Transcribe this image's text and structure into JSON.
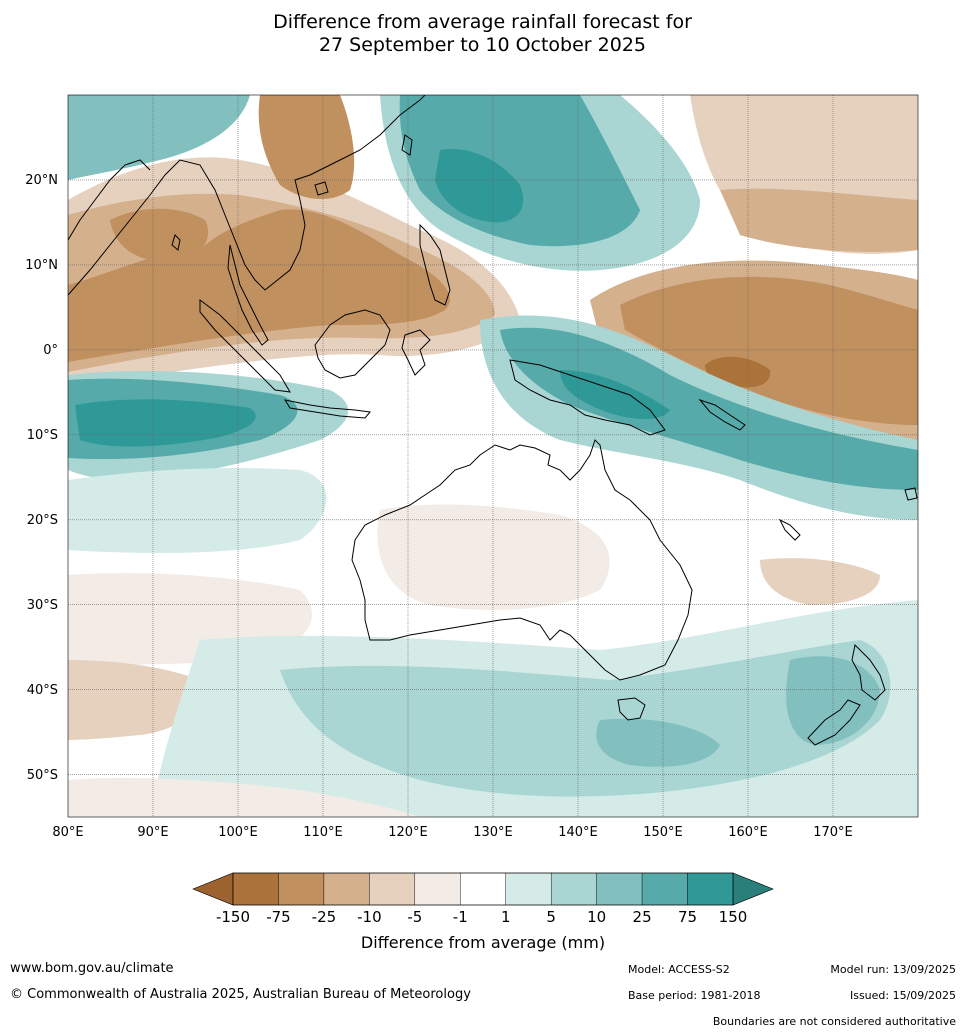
{
  "title": {
    "line1": "Difference from average rainfall forecast for",
    "line2": "27 September to 10 October 2025"
  },
  "map": {
    "lon_range": [
      80,
      180
    ],
    "lat_range": [
      -55,
      30
    ],
    "lat_ticks": [
      {
        "value": 20,
        "label": "20°N"
      },
      {
        "value": 10,
        "label": "10°N"
      },
      {
        "value": 0,
        "label": "0°"
      },
      {
        "value": -10,
        "label": "10°S"
      },
      {
        "value": -20,
        "label": "20°S"
      },
      {
        "value": -30,
        "label": "30°S"
      },
      {
        "value": -40,
        "label": "40°S"
      },
      {
        "value": -50,
        "label": "50°S"
      }
    ],
    "lon_ticks": [
      {
        "value": 80,
        "label": "80°E"
      },
      {
        "value": 90,
        "label": "90°E"
      },
      {
        "value": 100,
        "label": "100°E"
      },
      {
        "value": 110,
        "label": "110°E"
      },
      {
        "value": 120,
        "label": "120°E"
      },
      {
        "value": 130,
        "label": "130°E"
      },
      {
        "value": 140,
        "label": "140°E"
      },
      {
        "value": 150,
        "label": "150°E"
      },
      {
        "value": 160,
        "label": "160°E"
      },
      {
        "value": 170,
        "label": "170°E"
      }
    ]
  },
  "colorbar": {
    "levels": [
      "-150",
      "-75",
      "-25",
      "-10",
      "-5",
      "-1",
      "1",
      "5",
      "10",
      "25",
      "75",
      "150"
    ],
    "colors": [
      "#ab733a",
      "#c0905f",
      "#d4b08c",
      "#e6d1bf",
      "#f3ebe5",
      "#ffffff",
      "#d5ebe8",
      "#a9d6d3",
      "#81c0bf",
      "#56aaa9",
      "#2e9996"
    ],
    "extend_low_color": "#9c6230",
    "extend_high_color": "#2a7f7b",
    "label": "Difference from average (mm)"
  },
  "footer": {
    "website": "www.bom.gov.au/climate",
    "copyright": "© Commonwealth of Australia 2025, Australian Bureau of Meteorology",
    "model": "Model: ACCESS-S2",
    "base_period": "Base period: 1981-2018",
    "model_run": "Model run: 13/09/2025",
    "issued": "Issued: 15/09/2025",
    "disclaimer": "Boundaries are not considered authoritative"
  }
}
